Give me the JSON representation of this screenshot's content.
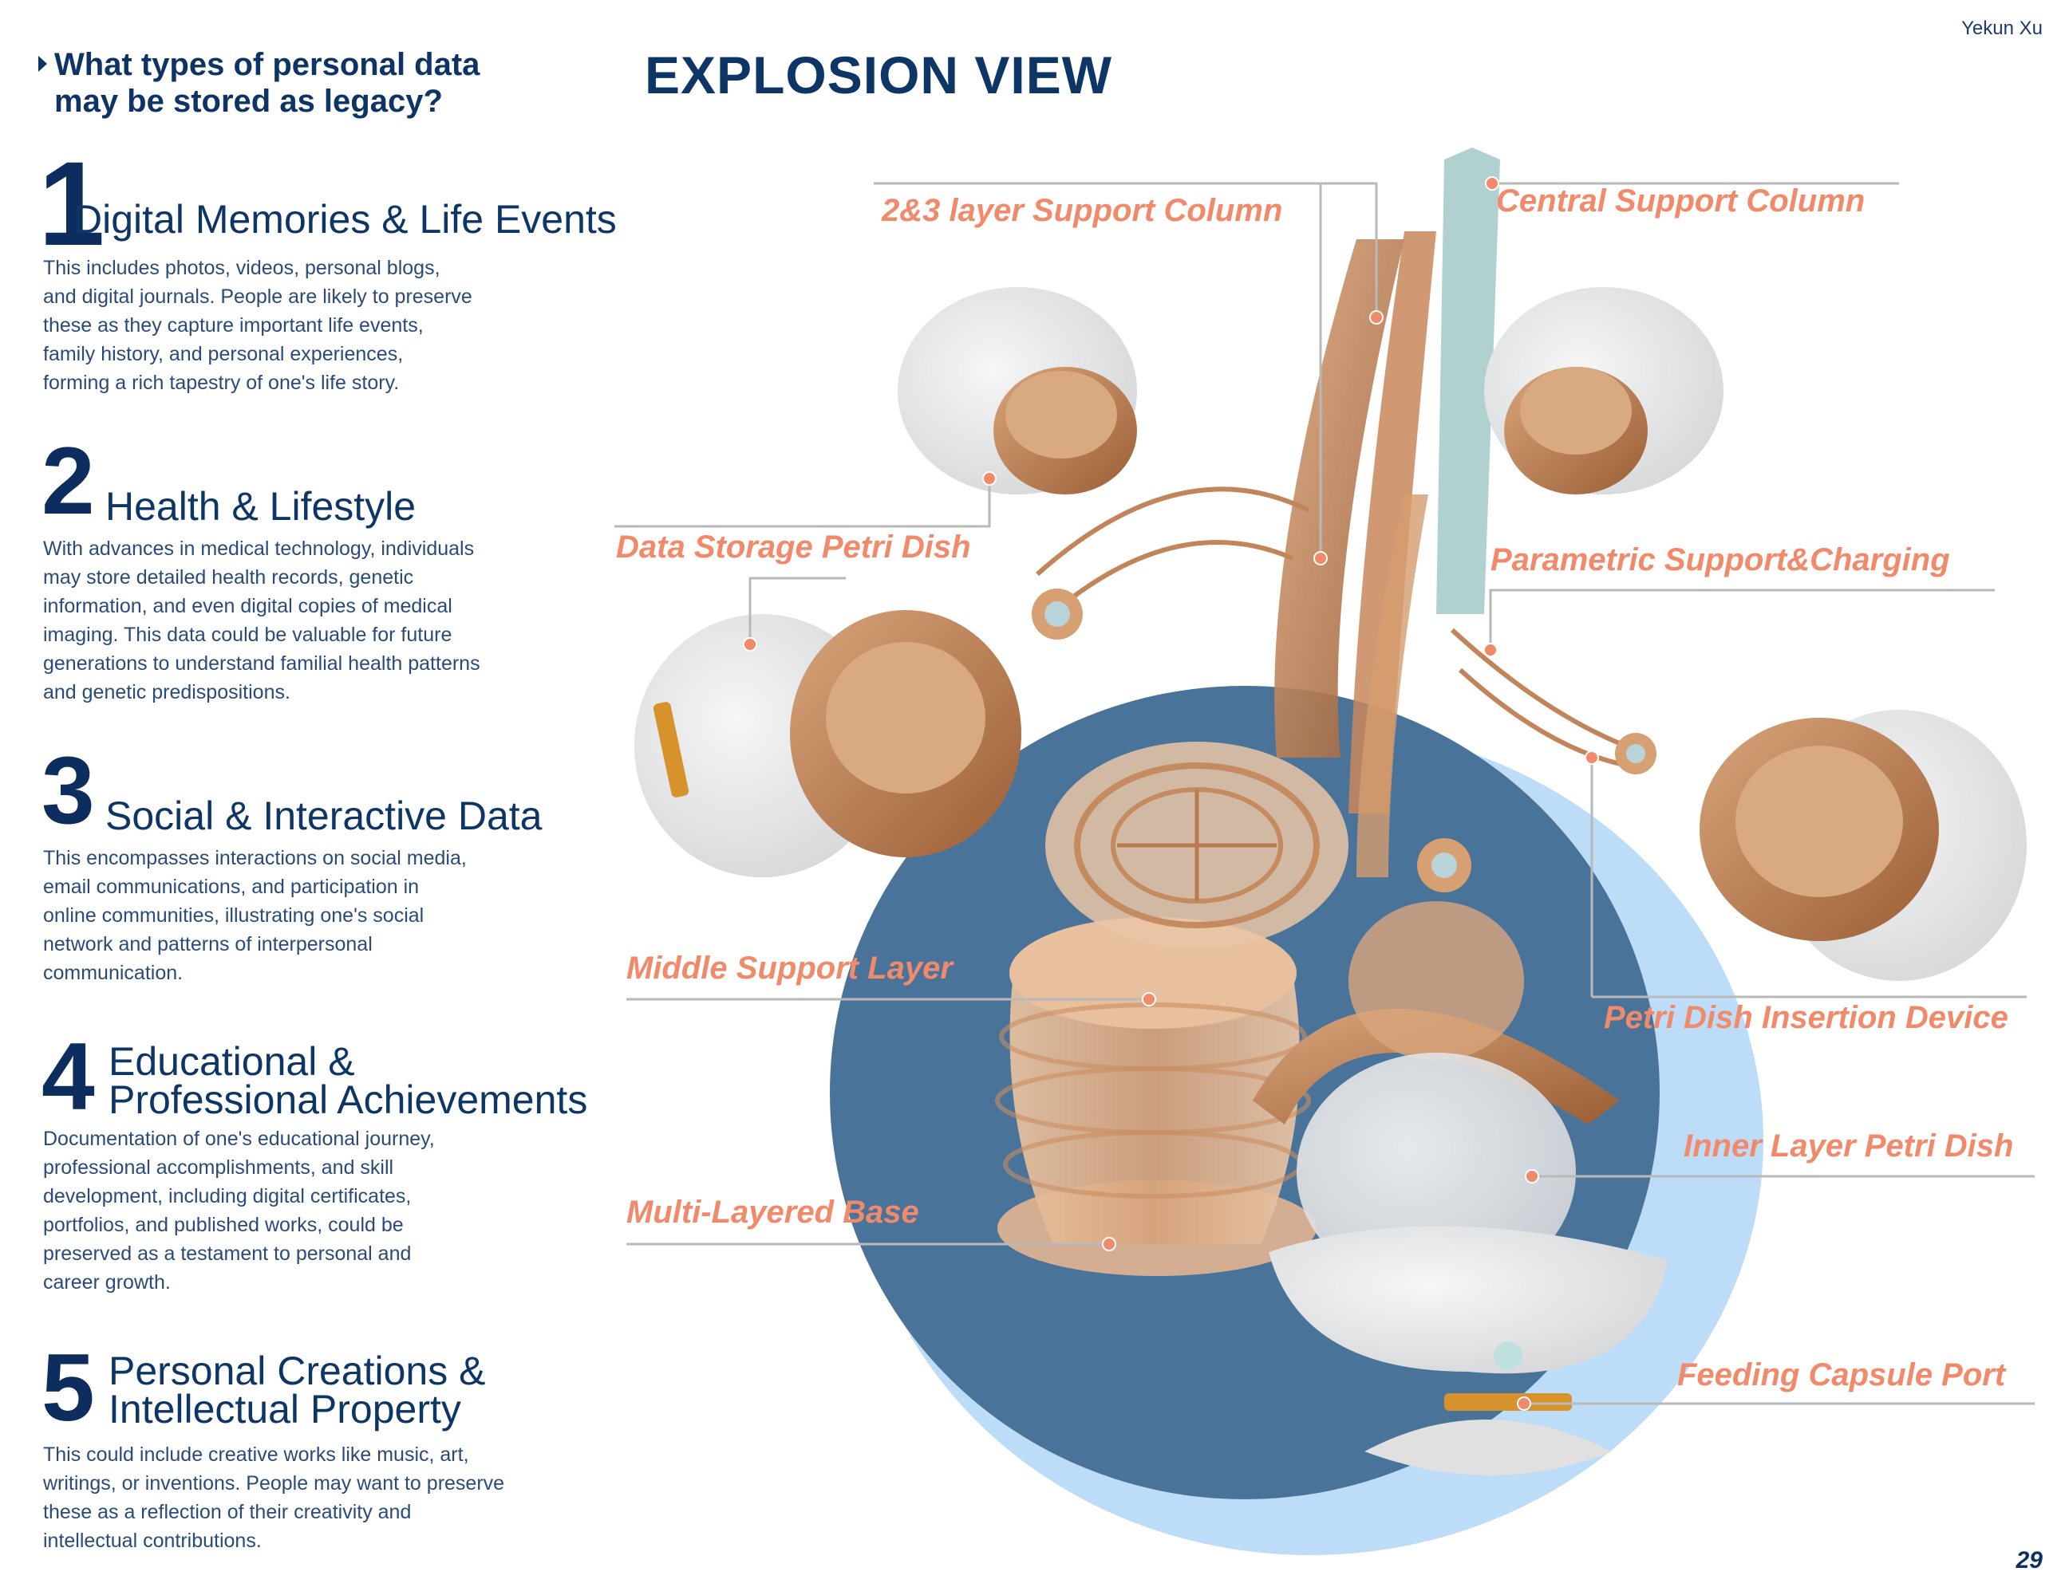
{
  "author": "Yekun Xu",
  "page_number": "29",
  "question": {
    "line1": "What types of personal data",
    "line2": "may be stored as legacy?"
  },
  "title": "EXPLOSION VIEW",
  "sections": [
    {
      "number": "1",
      "title_lines": [
        "Digital Memories & Life Events"
      ],
      "body_lines": [
        "This includes photos, videos, personal blogs,",
        "and digital journals. People are likely to preserve",
        "these as they capture important life events,",
        "family history, and personal experiences,",
        "forming a rich tapestry of one's life story."
      ]
    },
    {
      "number": "2",
      "title_lines": [
        "Health & Lifestyle"
      ],
      "body_lines": [
        "With advances in medical technology, individuals",
        "may store detailed health records, genetic",
        "information, and even digital copies of medical",
        "imaging. This data could be valuable for future",
        "generations to understand familial health patterns",
        "and genetic predispositions."
      ]
    },
    {
      "number": "3",
      "title_lines": [
        "Social & Interactive Data"
      ],
      "body_lines": [
        "This encompasses interactions on social media,",
        "email communications, and participation in",
        "online communities, illustrating one's social",
        "network and patterns of interpersonal",
        "communication."
      ]
    },
    {
      "number": "4",
      "title_lines": [
        "Educational &",
        "Professional Achievements"
      ],
      "body_lines": [
        "Documentation of one's educational journey,",
        "professional accomplishments, and skill",
        "development, including digital certificates,",
        "portfolios, and published works, could be",
        "preserved as a testament to personal and",
        "career growth."
      ]
    },
    {
      "number": "5",
      "title_lines": [
        "Personal Creations &",
        "Intellectual Property"
      ],
      "body_lines": [
        "This could include creative works like music, art,",
        "writings, or inventions. People may want to preserve",
        "these as a reflection of their creativity and",
        "intellectual contributions."
      ]
    }
  ],
  "labels": {
    "support_column_23": "2&3 layer Support Column",
    "central_support_column": "Central Support Column",
    "data_storage_petri_dish": "Data Storage Petri Dish",
    "parametric_support_charging": "Parametric Support&Charging",
    "middle_support_layer": "Middle Support Layer",
    "petri_dish_insertion_device": "Petri Dish Insertion Device",
    "inner_layer_petri_dish": "Inner Layer Petri Dish",
    "multi_layered_base": "Multi-Layered Base",
    "feeding_capsule_port": "Feeding Capsule Port"
  },
  "colors": {
    "navy": "#0d3566",
    "label_orange": "#f08a6a",
    "backdrop_blue": "#4a7399",
    "backdrop_light": "#bcdcf7",
    "copper": "#c9875a"
  }
}
